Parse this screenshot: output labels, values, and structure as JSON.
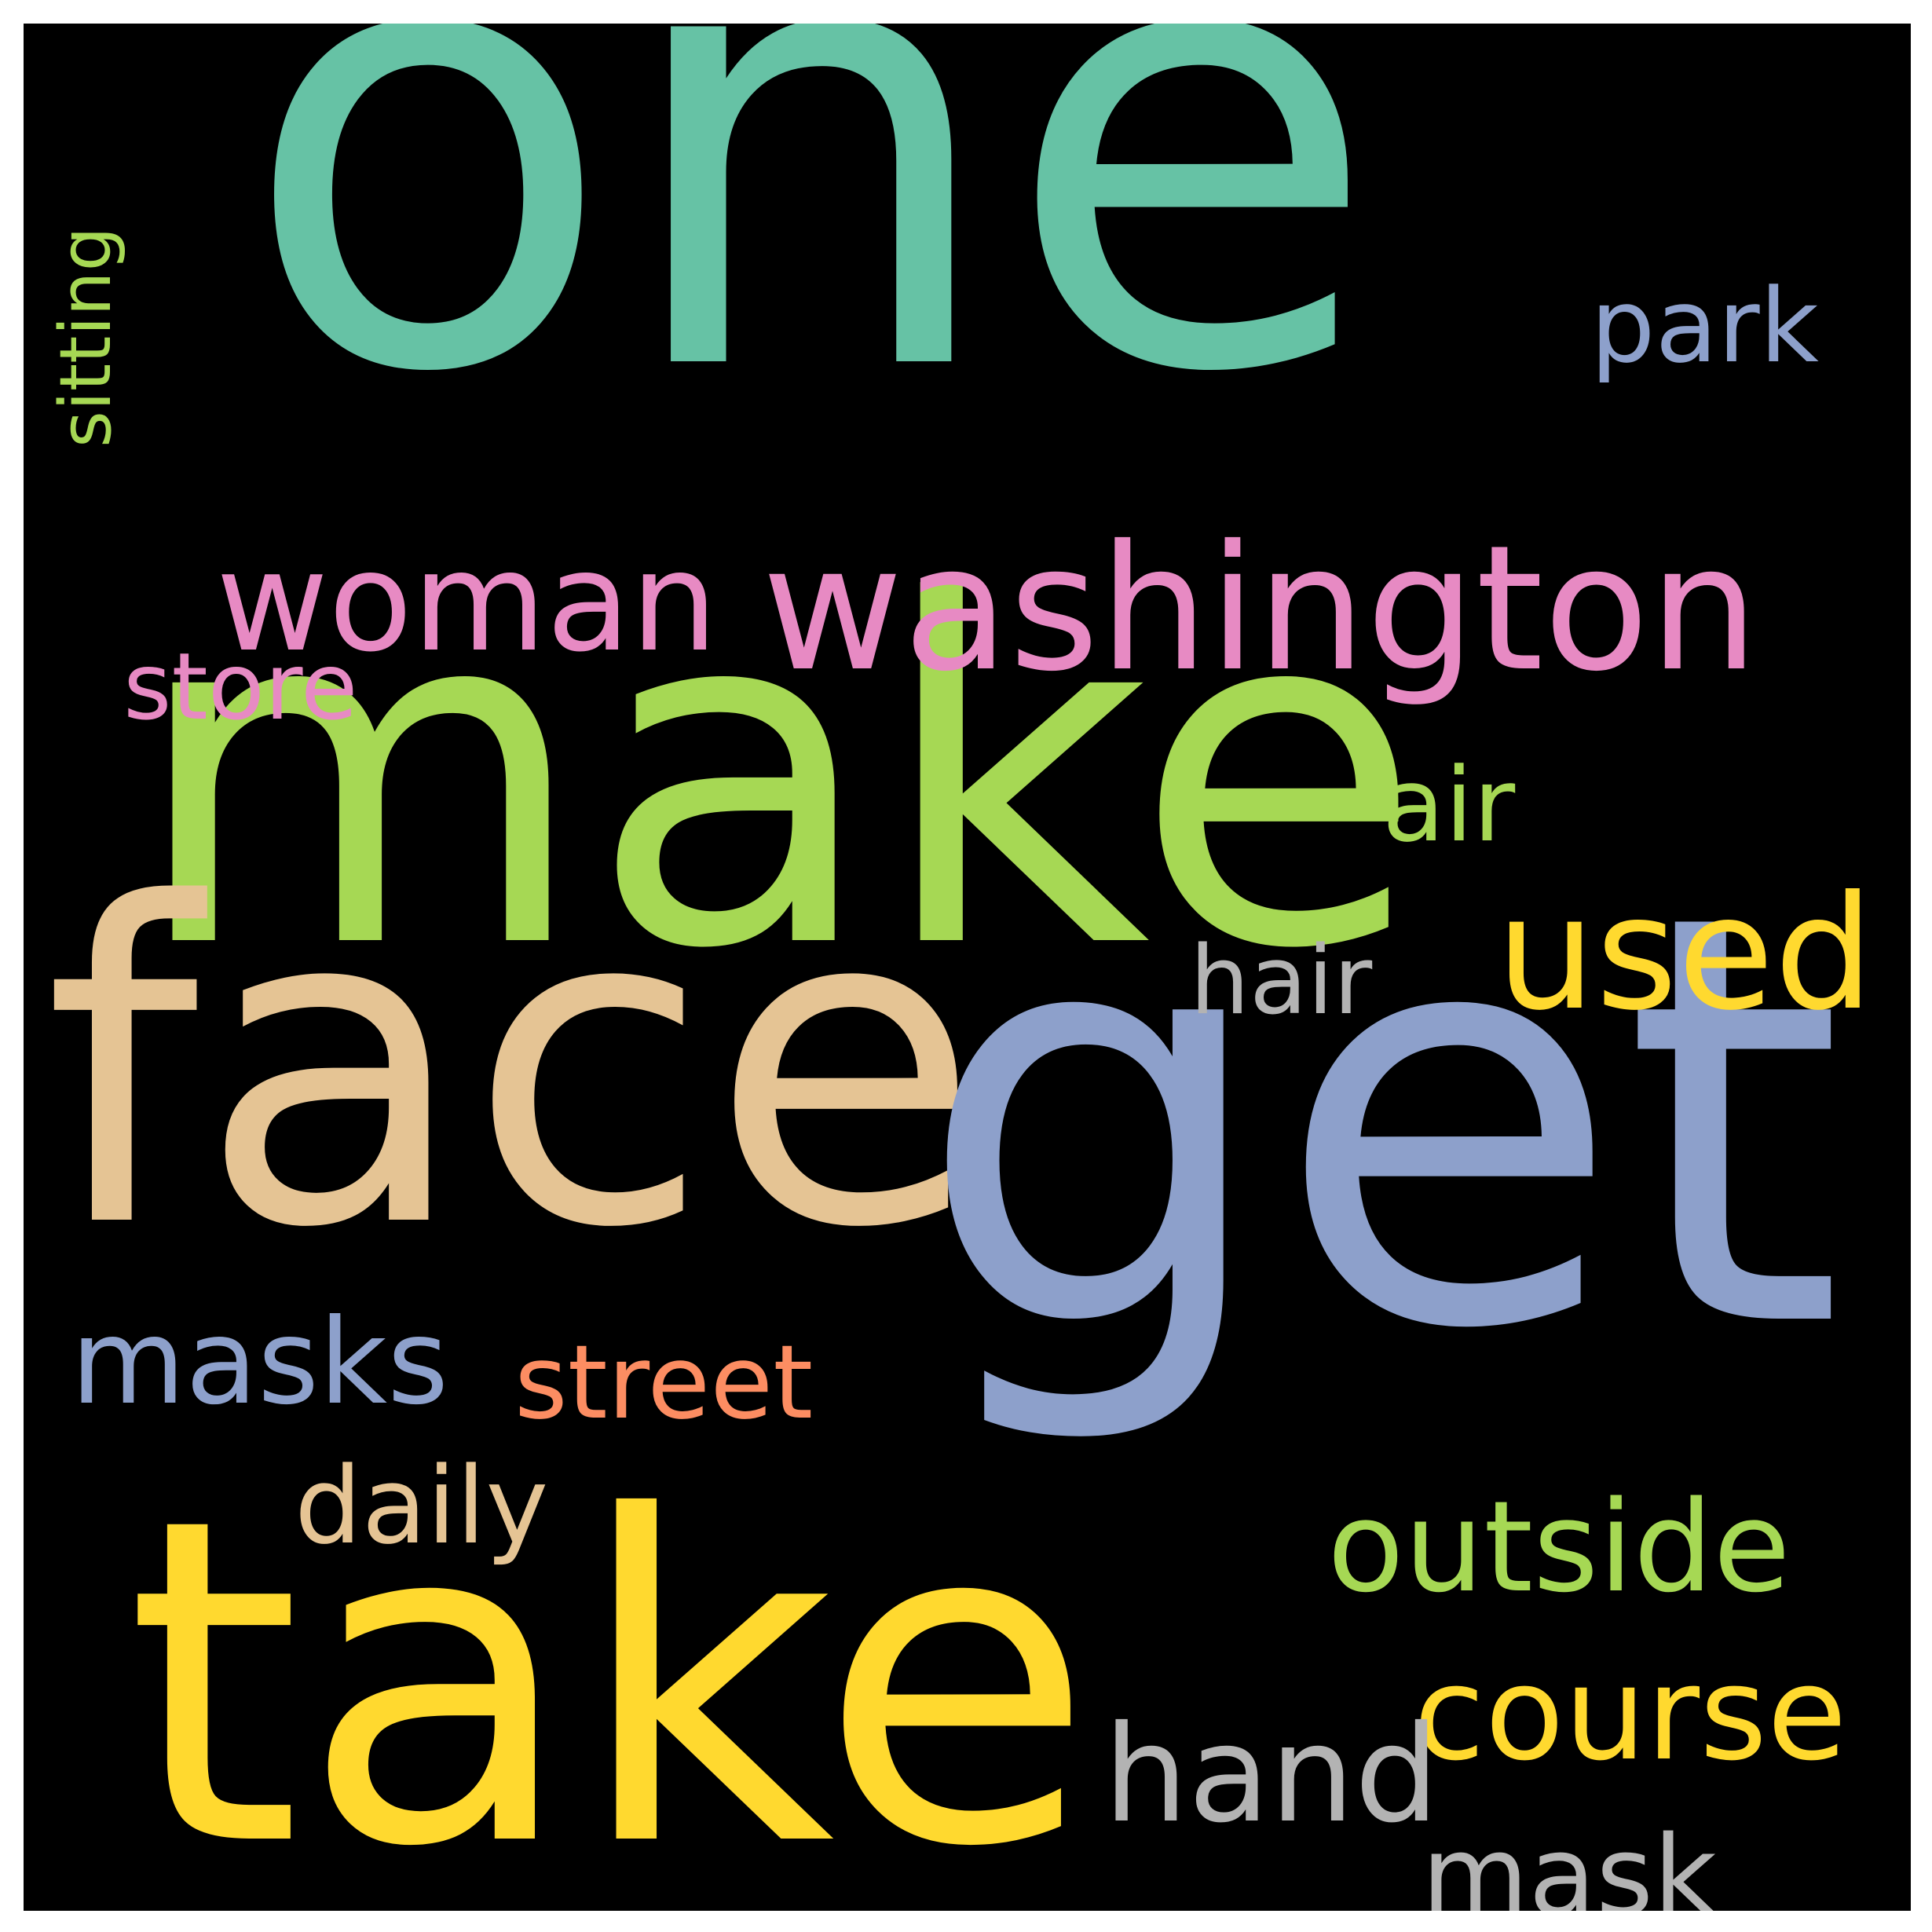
{
  "words": [
    {
      "key": "one",
      "text": "one",
      "color": "#66c2a5"
    },
    {
      "key": "make",
      "text": "make",
      "color": "#a6d854"
    },
    {
      "key": "face",
      "text": "face",
      "color": "#e5c494"
    },
    {
      "key": "get",
      "text": "get",
      "color": "#8da0cb"
    },
    {
      "key": "take",
      "text": "take",
      "color": "#ffd92f"
    },
    {
      "key": "washington",
      "text": "washington",
      "color": "#e78ac3"
    },
    {
      "key": "woman",
      "text": "woman",
      "color": "#e78ac3"
    },
    {
      "key": "store",
      "text": "store",
      "color": "#e78ac3"
    },
    {
      "key": "park",
      "text": "park",
      "color": "#8da0cb"
    },
    {
      "key": "air",
      "text": "air",
      "color": "#a6d854"
    },
    {
      "key": "used",
      "text": "used",
      "color": "#ffd92f"
    },
    {
      "key": "hair",
      "text": "hair",
      "color": "#b3b3b3"
    },
    {
      "key": "masks",
      "text": "masks",
      "color": "#8da0cb"
    },
    {
      "key": "street",
      "text": "street",
      "color": "#fc8d62"
    },
    {
      "key": "daily",
      "text": "daily",
      "color": "#e5c494"
    },
    {
      "key": "outside",
      "text": "outside",
      "color": "#a6d854"
    },
    {
      "key": "course",
      "text": "course",
      "color": "#ffd92f"
    },
    {
      "key": "hand",
      "text": "hand",
      "color": "#b3b3b3"
    },
    {
      "key": "mask",
      "text": "mask",
      "color": "#b3b3b3"
    },
    {
      "key": "sitting",
      "text": "sitting",
      "color": "#a6d854"
    }
  ]
}
